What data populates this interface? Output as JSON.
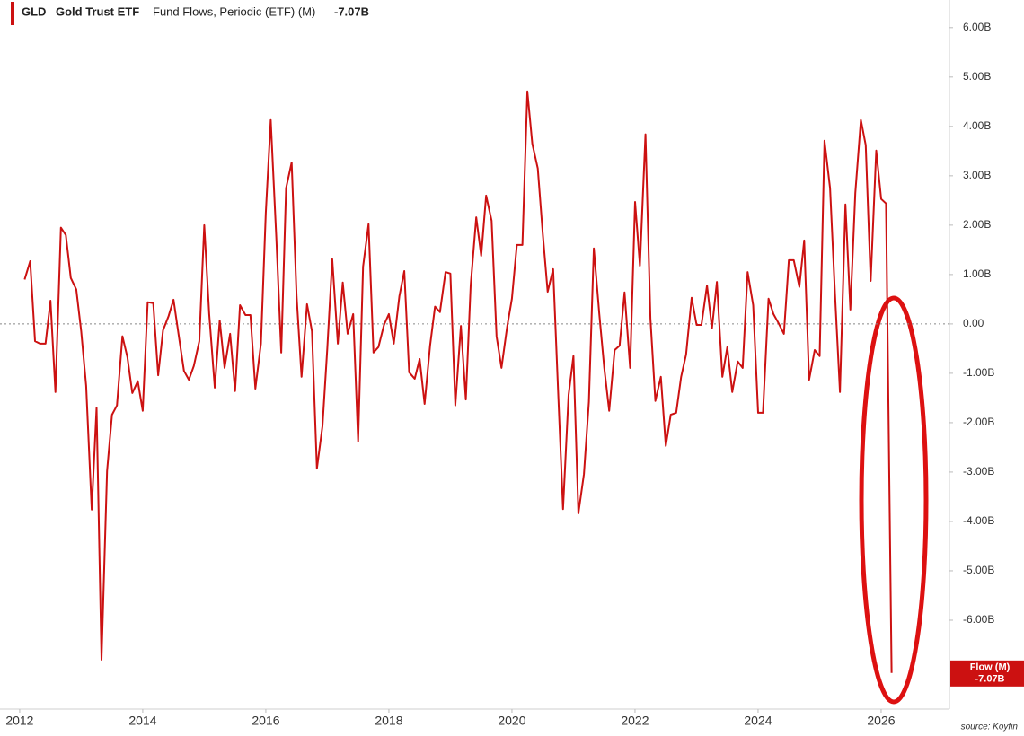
{
  "chart_data": {
    "type": "line",
    "header": {
      "ticker": "GLD",
      "name": "Gold Trust ETF",
      "metric": "Fund Flows, Periodic (ETF) (M)",
      "last": "-7.07B"
    },
    "end_label": {
      "name": "Flow (M)",
      "value": "-7.07B"
    },
    "source": "source: Koyfin",
    "color": "#cc1111",
    "xlim": [
      2011.68,
      2027.11
    ],
    "xticks": [
      2012,
      2014,
      2016,
      2018,
      2020,
      2022,
      2024,
      2026
    ],
    "ylim": [
      -7.8,
      6.56
    ],
    "yticks": [
      {
        "value": 6,
        "label": "6.00B"
      },
      {
        "value": 5,
        "label": "5.00B"
      },
      {
        "value": 4,
        "label": "4.00B"
      },
      {
        "value": 3,
        "label": "3.00B"
      },
      {
        "value": 2,
        "label": "2.00B"
      },
      {
        "value": 1,
        "label": "1.00B"
      },
      {
        "value": 0,
        "label": "0.00"
      },
      {
        "value": -1,
        "label": "-1.00B"
      },
      {
        "value": -2,
        "label": "-2.00B"
      },
      {
        "value": -3,
        "label": "-3.00B"
      },
      {
        "value": -4,
        "label": "-4.00B"
      },
      {
        "value": -5,
        "label": "-5.00B"
      },
      {
        "value": -6,
        "label": "-6.00B"
      }
    ],
    "x": [
      2012.08,
      2012.17,
      2012.25,
      2012.33,
      2012.42,
      2012.5,
      2012.58,
      2012.67,
      2012.75,
      2012.83,
      2012.92,
      2013.0,
      2013.08,
      2013.17,
      2013.25,
      2013.33,
      2013.42,
      2013.5,
      2013.58,
      2013.67,
      2013.75,
      2013.83,
      2013.92,
      2014.0,
      2014.08,
      2014.17,
      2014.25,
      2014.33,
      2014.42,
      2014.5,
      2014.58,
      2014.67,
      2014.75,
      2014.83,
      2014.92,
      2015.0,
      2015.08,
      2015.17,
      2015.25,
      2015.33,
      2015.42,
      2015.5,
      2015.58,
      2015.67,
      2015.75,
      2015.83,
      2015.92,
      2016.0,
      2016.08,
      2016.17,
      2016.25,
      2016.33,
      2016.42,
      2016.5,
      2016.58,
      2016.67,
      2016.75,
      2016.83,
      2016.92,
      2017.0,
      2017.08,
      2017.17,
      2017.25,
      2017.33,
      2017.42,
      2017.5,
      2017.58,
      2017.67,
      2017.75,
      2017.83,
      2017.92,
      2018.0,
      2018.08,
      2018.17,
      2018.25,
      2018.33,
      2018.42,
      2018.5,
      2018.58,
      2018.67,
      2018.75,
      2018.83,
      2018.92,
      2019.0,
      2019.08,
      2019.17,
      2019.25,
      2019.33,
      2019.42,
      2019.5,
      2019.58,
      2019.67,
      2019.75,
      2019.83,
      2019.92,
      2020.0,
      2020.08,
      2020.17,
      2020.25,
      2020.33,
      2020.42,
      2020.5,
      2020.58,
      2020.67,
      2020.75,
      2020.83,
      2020.92,
      2021.0,
      2021.08,
      2021.17,
      2021.25,
      2021.33,
      2021.42,
      2021.5,
      2021.58,
      2021.67,
      2021.75,
      2021.83,
      2021.92,
      2022.0,
      2022.08,
      2022.17,
      2022.25,
      2022.33,
      2022.42,
      2022.5,
      2022.58,
      2022.67,
      2022.75,
      2022.83,
      2022.92,
      2023.0,
      2023.08,
      2023.17,
      2023.25,
      2023.33,
      2023.42,
      2023.5,
      2023.58,
      2023.67,
      2023.75,
      2023.83,
      2023.92,
      2024.0,
      2024.08,
      2024.17,
      2024.25,
      2024.33,
      2024.42,
      2024.5,
      2024.58,
      2024.67,
      2024.75,
      2024.83,
      2024.92,
      2025.0,
      2025.08,
      2025.17,
      2025.25,
      2025.33,
      2025.42,
      2025.5,
      2025.58,
      2025.67,
      2025.75,
      2025.83,
      2025.92,
      2026.0,
      2026.08,
      2026.17
    ],
    "values": [
      0.9,
      1.27,
      -0.35,
      -0.4,
      -0.4,
      0.47,
      -1.38,
      1.95,
      1.8,
      0.93,
      0.7,
      -0.15,
      -1.25,
      -3.76,
      -1.7,
      -6.8,
      -2.98,
      -1.84,
      -1.65,
      -0.25,
      -0.67,
      -1.4,
      -1.16,
      -1.76,
      0.44,
      0.42,
      -1.04,
      -0.13,
      0.16,
      0.49,
      -0.2,
      -0.95,
      -1.13,
      -0.85,
      -0.35,
      2.0,
      0.2,
      -1.29,
      0.07,
      -0.89,
      -0.2,
      -1.36,
      0.38,
      0.18,
      0.18,
      -1.31,
      -0.4,
      2.25,
      4.13,
      1.75,
      -0.58,
      2.75,
      3.27,
      0.56,
      -1.07,
      0.4,
      -0.15,
      -2.93,
      -2.07,
      -0.49,
      1.31,
      -0.4,
      0.84,
      -0.2,
      0.2,
      -2.38,
      1.16,
      2.02,
      -0.58,
      -0.47,
      -0.02,
      0.2,
      -0.4,
      0.56,
      1.07,
      -0.98,
      -1.11,
      -0.71,
      -1.62,
      -0.44,
      0.35,
      0.24,
      1.05,
      1.02,
      -1.65,
      -0.04,
      -1.53,
      0.78,
      2.16,
      1.38,
      2.6,
      2.09,
      -0.25,
      -0.89,
      -0.07,
      0.51,
      1.6,
      1.6,
      4.71,
      3.65,
      3.15,
      1.84,
      0.65,
      1.11,
      -1.35,
      -3.75,
      -1.44,
      -0.65,
      -3.84,
      -3.04,
      -1.58,
      1.53,
      0.2,
      -0.89,
      -1.76,
      -0.53,
      -0.44,
      0.64,
      -0.89,
      2.47,
      1.18,
      3.84,
      0.11,
      -1.56,
      -1.07,
      -2.47,
      -1.84,
      -1.8,
      -1.07,
      -0.62,
      0.53,
      -0.02,
      -0.02,
      0.78,
      -0.09,
      0.85,
      -1.07,
      -0.47,
      -1.38,
      -0.76,
      -0.89,
      1.05,
      0.38,
      -1.8,
      -1.8,
      0.51,
      0.2,
      0.02,
      -0.2,
      1.29,
      1.29,
      0.75,
      1.69,
      -1.13,
      -0.53,
      -0.65,
      3.71,
      2.75,
      0.6,
      -1.38,
      2.42,
      0.29,
      2.65,
      4.13,
      3.62,
      0.87,
      3.51,
      2.53,
      2.44,
      -7.07
    ]
  }
}
